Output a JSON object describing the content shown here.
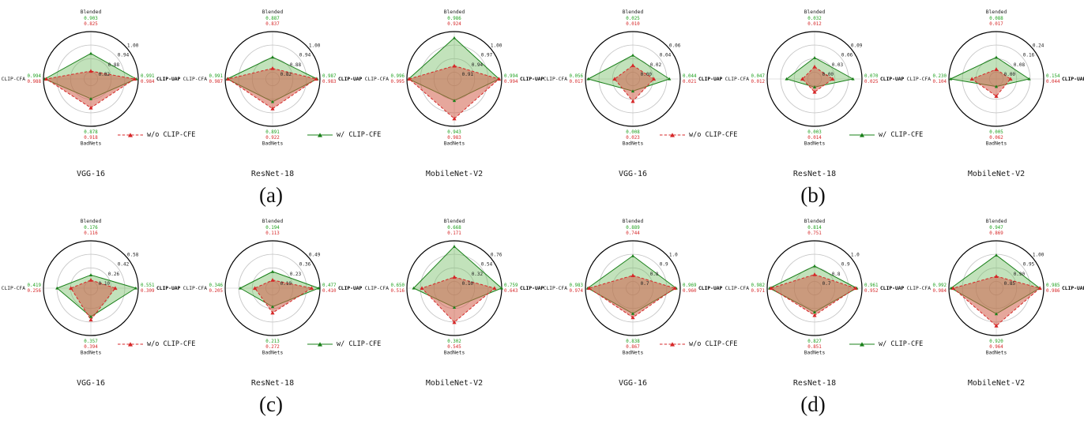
{
  "figure": {
    "legend": {
      "without": {
        "label": "w/o CLIP-CFE"
      },
      "with": {
        "label": "w/ CLIP-CFE"
      }
    },
    "colors": {
      "without_line": "#d62728",
      "without_fill": "rgba(210,95,75,0.55)",
      "without_text": "#d62728",
      "with_line": "#1a801a",
      "with_fill": "rgba(120,190,105,0.45)",
      "with_text": "#1fa01f",
      "grid": "#c6c6c6",
      "outer_ring": "#000000"
    }
  },
  "chart_data": [
    {
      "type": "radar",
      "panel_label": "(a)",
      "categories": [
        "Blended",
        "CLIP-UAP",
        "BadNets",
        "CLIP-CFA"
      ],
      "charts": [
        {
          "model": "VGG-16",
          "tick_labels": [
            "0.82",
            "0.88",
            "0.94",
            "1.00"
          ],
          "series": [
            {
              "name": "w/o CLIP-CFE",
              "values": [
                0.825,
                0.984,
                0.918,
                0.988
              ]
            },
            {
              "name": "w/ CLIP-CFE",
              "values": [
                0.903,
                0.991,
                0.878,
                0.994
              ]
            }
          ]
        },
        {
          "model": "ResNet-18",
          "tick_labels": [
            "0.82",
            "0.88",
            "0.94",
            "1.00"
          ],
          "series": [
            {
              "name": "w/o CLIP-CFE",
              "values": [
                0.837,
                0.983,
                0.922,
                0.987
              ]
            },
            {
              "name": "w/ CLIP-CFE",
              "values": [
                0.887,
                0.987,
                0.891,
                0.991
              ]
            }
          ]
        },
        {
          "model": "MobileNet-V2",
          "tick_labels": [
            "0.91",
            "0.94",
            "0.97",
            "1.00"
          ],
          "series": [
            {
              "name": "w/o CLIP-CFE",
              "values": [
                0.924,
                0.994,
                0.983,
                0.995
              ]
            },
            {
              "name": "w/ CLIP-CFE",
              "values": [
                0.986,
                0.994,
                0.943,
                0.996
              ]
            }
          ]
        }
      ]
    },
    {
      "type": "radar",
      "panel_label": "(b)",
      "categories": [
        "Blended",
        "CLIP-UAP",
        "BadNets",
        "CLIP-CFA"
      ],
      "charts": [
        {
          "model": "VGG-16",
          "tick_labels": [
            "0.00",
            "0.02",
            "0.04",
            "0.06"
          ],
          "series": [
            {
              "name": "w/o CLIP-CFE",
              "values": [
                0.01,
                0.021,
                0.023,
                0.017
              ]
            },
            {
              "name": "w/ CLIP-CFE",
              "values": [
                0.025,
                0.044,
                0.008,
                0.056
              ]
            }
          ]
        },
        {
          "model": "ResNet-18",
          "tick_labels": [
            "0.00",
            "0.03",
            "0.06",
            "0.09"
          ],
          "series": [
            {
              "name": "w/o CLIP-CFE",
              "values": [
                0.012,
                0.025,
                0.014,
                0.012
              ]
            },
            {
              "name": "w/ CLIP-CFE",
              "values": [
                0.032,
                0.07,
                0.003,
                0.047
              ]
            }
          ]
        },
        {
          "model": "MobileNet-V2",
          "tick_labels": [
            "0.00",
            "0.08",
            "0.16",
            "0.24"
          ],
          "series": [
            {
              "name": "w/o CLIP-CFE",
              "values": [
                0.017,
                0.044,
                0.062,
                0.104
              ]
            },
            {
              "name": "w/ CLIP-CFE",
              "values": [
                0.088,
                0.154,
                0.005,
                0.23
              ]
            }
          ]
        }
      ]
    },
    {
      "type": "radar",
      "panel_label": "(c)",
      "categories": [
        "Blended",
        "CLIP-UAP",
        "BadNets",
        "CLIP-CFA"
      ],
      "charts": [
        {
          "model": "VGG-16",
          "tick_labels": [
            "0.10",
            "0.26",
            "0.42",
            "0.58"
          ],
          "series": [
            {
              "name": "w/o CLIP-CFE",
              "values": [
                0.116,
                0.309,
                0.394,
                0.256
              ]
            },
            {
              "name": "w/ CLIP-CFE",
              "values": [
                0.176,
                0.551,
                0.357,
                0.419
              ]
            }
          ]
        },
        {
          "model": "ResNet-18",
          "tick_labels": [
            "0.10",
            "0.23",
            "0.36",
            "0.49"
          ],
          "series": [
            {
              "name": "w/o CLIP-CFE",
              "values": [
                0.113,
                0.41,
                0.272,
                0.205
              ]
            },
            {
              "name": "w/ CLIP-CFE",
              "values": [
                0.194,
                0.477,
                0.213,
                0.346
              ]
            }
          ]
        },
        {
          "model": "MobileNet-V2",
          "tick_labels": [
            "0.10",
            "0.32",
            "0.54",
            "0.76"
          ],
          "series": [
            {
              "name": "w/o CLIP-CFE",
              "values": [
                0.171,
                0.643,
                0.545,
                0.516
              ]
            },
            {
              "name": "w/ CLIP-CFE",
              "values": [
                0.668,
                0.759,
                0.302,
                0.65
              ]
            }
          ]
        }
      ]
    },
    {
      "type": "radar",
      "panel_label": "(d)",
      "categories": [
        "Blended",
        "CLIP-UAP",
        "BadNets",
        "CLIP-CFA"
      ],
      "charts": [
        {
          "model": "VGG-16",
          "tick_labels": [
            "0.7",
            "0.8",
            "0.9",
            "1.0"
          ],
          "series": [
            {
              "name": "w/o CLIP-CFE",
              "values": [
                0.744,
                0.96,
                0.867,
                0.974
              ]
            },
            {
              "name": "w/ CLIP-CFE",
              "values": [
                0.889,
                0.969,
                0.838,
                0.983
              ]
            }
          ]
        },
        {
          "model": "ResNet-18",
          "tick_labels": [
            "0.7",
            "0.8",
            "0.9",
            "1.0"
          ],
          "series": [
            {
              "name": "w/o CLIP-CFE",
              "values": [
                0.751,
                0.952,
                0.851,
                0.971
              ]
            },
            {
              "name": "w/ CLIP-CFE",
              "values": [
                0.814,
                0.961,
                0.827,
                0.982
              ]
            }
          ]
        },
        {
          "model": "MobileNet-V2",
          "tick_labels": [
            "0.85",
            "0.90",
            "0.95",
            "1.00"
          ],
          "series": [
            {
              "name": "w/o CLIP-CFE",
              "values": [
                0.869,
                0.986,
                0.964,
                0.984
              ]
            },
            {
              "name": "w/ CLIP-CFE",
              "values": [
                0.947,
                0.985,
                0.92,
                0.992
              ]
            }
          ]
        }
      ]
    }
  ]
}
